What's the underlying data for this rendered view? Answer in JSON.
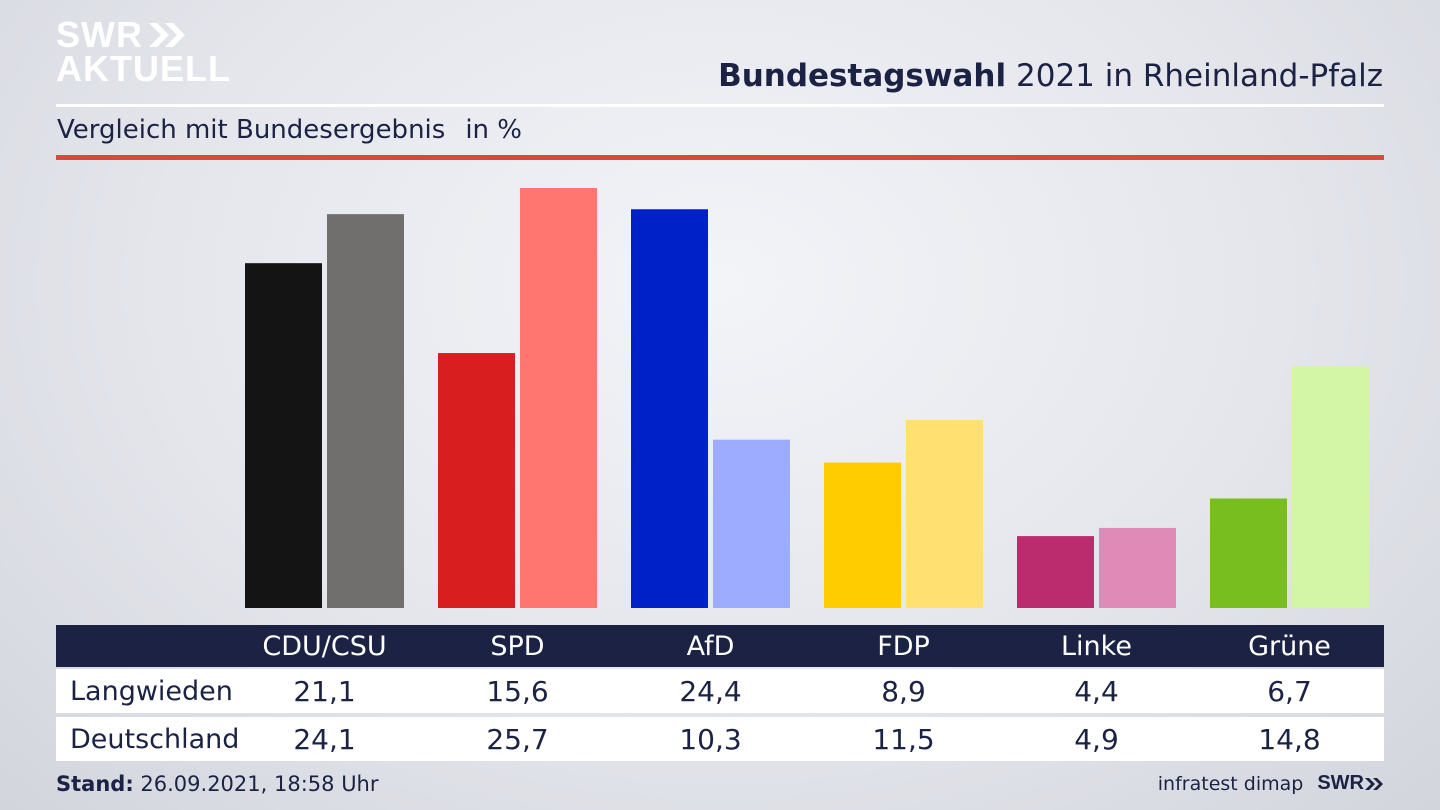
{
  "brand": {
    "line1": "SWR",
    "line2": "AKTUELL"
  },
  "header": {
    "title_bold": "Bundestagswahl",
    "title_rest": "2021 in Rheinland-Pfalz"
  },
  "subtitle": {
    "text": "Vergleich mit Bundesergebnis",
    "unit": "in %"
  },
  "colors": {
    "primary": [
      "#141414",
      "#d81e1e",
      "#0020c8",
      "#ffcc00",
      "#bb2c6e",
      "#78be1e"
    ],
    "secondary": [
      "#706f6d",
      "#ff7670",
      "#9eacff",
      "#ffe070",
      "#e08ab8",
      "#d3f5a6"
    ],
    "header_bg": "#1b2244",
    "accent_rule": "#d64a3c"
  },
  "chart_data": {
    "type": "bar",
    "categories": [
      "CDU/CSU",
      "SPD",
      "AfD",
      "FDP",
      "Linke",
      "Grüne"
    ],
    "series": [
      {
        "name": "Langwieden",
        "values": [
          21.1,
          15.6,
          24.4,
          8.9,
          4.4,
          6.7
        ]
      },
      {
        "name": "Deutschland",
        "values": [
          24.1,
          25.7,
          10.3,
          11.5,
          4.9,
          14.8
        ]
      }
    ],
    "ylim": [
      0,
      25.7
    ]
  },
  "table": {
    "rows": [
      {
        "label": "Langwieden",
        "values": [
          "21,1",
          "15,6",
          "24,4",
          "8,9",
          "4,4",
          "6,7"
        ]
      },
      {
        "label": "Deutschland",
        "values": [
          "24,1",
          "25,7",
          "10,3",
          "11,5",
          "4,9",
          "14,8"
        ]
      }
    ]
  },
  "footer": {
    "stand_label": "Stand:",
    "stand_value": "26.09.2021, 18:58 Uhr",
    "source": "infratest dimap",
    "brand": "SWR"
  }
}
